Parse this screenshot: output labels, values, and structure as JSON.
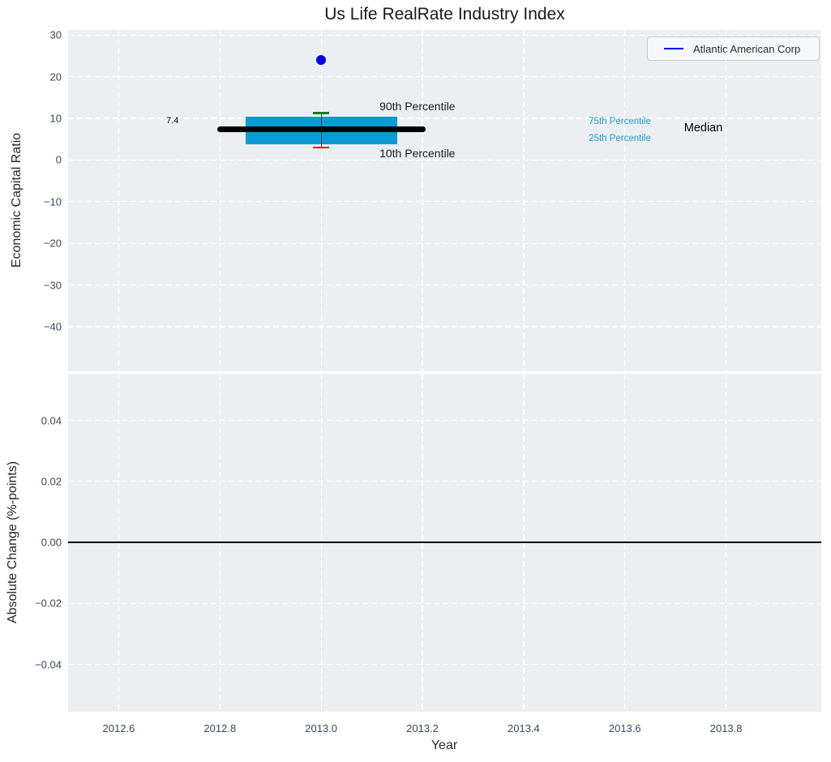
{
  "title": "Us Life RealRate Industry Index",
  "legend": {
    "label": "Atlantic American Corp",
    "line_color": "#0000ee"
  },
  "colors": {
    "axes_background": "#eceff1",
    "grid": "#ffffff",
    "tick_label": "#36495a",
    "text": "#262626",
    "box_fill": "#0a9bd2",
    "median_line": "#000000",
    "p90_cap": "#008000",
    "p10_cap": "#e8000b",
    "scatter_point": "#0000ee",
    "percentile_label": "#1d9fd6",
    "zero_line": "#000000"
  },
  "chart_data": [
    {
      "type": "scatter",
      "title": "Us Life RealRate Industry Index",
      "ylabel": "Economic Capital Ratio",
      "xlabel": "",
      "ylim": [
        -50.7,
        31.2
      ],
      "xlim": [
        2012.5,
        2013.988
      ],
      "yticks": [
        30,
        20,
        10,
        0,
        -10,
        -20,
        -30,
        -40
      ],
      "ytick_labels": [
        "30",
        "20",
        "10",
        "0",
        "−10",
        "−20",
        "−30",
        "−40"
      ],
      "grid": "white dashed",
      "legend_position": "upper right",
      "series": [
        {
          "name": "Atlantic American Corp",
          "type": "scatter",
          "x": [
            2013.0
          ],
          "y": [
            24.0
          ],
          "color": "#0000ee"
        }
      ],
      "boxplot": {
        "x": 2013.0,
        "median": 7.4,
        "q1": 3.8,
        "q3": 10.4,
        "p10": 3.0,
        "p90": 11.3,
        "box_half_width": 0.15,
        "median_half_width": 0.2,
        "cap_half_width": 0.016
      },
      "annotations": [
        {
          "text": "7.4",
          "x": 2012.694,
          "y": 9.4,
          "color": "#000000",
          "size": 11,
          "anchor": "left"
        },
        {
          "text": "90th Percentile",
          "x": 2013.19,
          "y": 12.9,
          "color": "#1a1a1a",
          "size": 14,
          "anchor": "center"
        },
        {
          "text": "10th Percentile",
          "x": 2013.19,
          "y": 1.65,
          "color": "#1a1a1a",
          "size": 14,
          "anchor": "center"
        },
        {
          "text": "75th Percentile",
          "x": 2013.59,
          "y": 9.3,
          "color": "#1d9fd6",
          "size": 11.5,
          "anchor": "center"
        },
        {
          "text": "25th Percentile",
          "x": 2013.59,
          "y": 5.15,
          "color": "#1d9fd6",
          "size": 11.5,
          "anchor": "center"
        },
        {
          "text": "Median",
          "x": 2013.755,
          "y": 7.65,
          "color": "#000000",
          "size": 14.5,
          "anchor": "center"
        }
      ]
    },
    {
      "type": "line",
      "ylabel": "Absolute Change (%-points)",
      "xlabel": "Year",
      "ylim": [
        -0.0555,
        0.0553
      ],
      "xlim": [
        2012.5,
        2013.988
      ],
      "yticks": [
        0.04,
        0.02,
        0.0,
        -0.02,
        -0.04
      ],
      "ytick_labels": [
        "0.04",
        "0.02",
        "0.00",
        "−0.02",
        "−0.04"
      ],
      "xticks": [
        2012.6,
        2012.8,
        2013.0,
        2013.2,
        2013.4,
        2013.6,
        2013.8
      ],
      "xtick_labels": [
        "2012.6",
        "2012.8",
        "2013.0",
        "2013.2",
        "2013.4",
        "2013.6",
        "2013.8"
      ],
      "grid": "white dashed",
      "zero_line_y": 0.0
    }
  ]
}
